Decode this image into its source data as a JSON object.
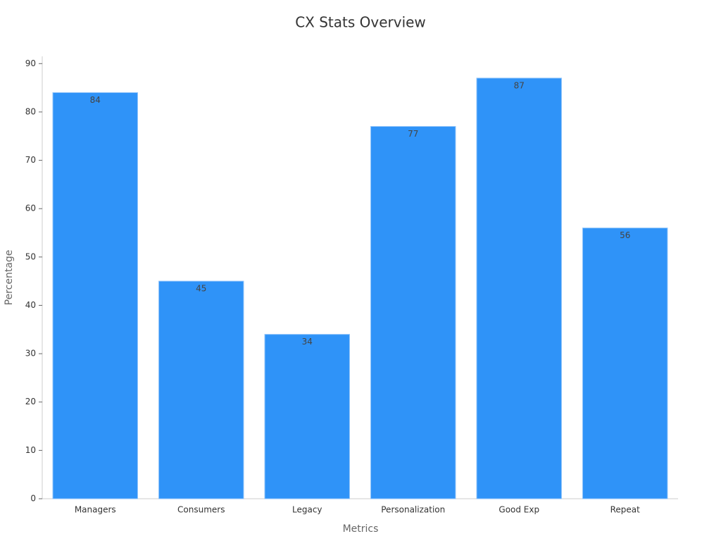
{
  "chart_data": {
    "type": "bar",
    "title": "CX Stats Overview",
    "x_label": "Metrics",
    "y_label": "Percentage",
    "categories": [
      "Managers",
      "Consumers",
      "Legacy",
      "Personalization",
      "Good Exp",
      "Repeat"
    ],
    "values": [
      84,
      45,
      34,
      77,
      87,
      56
    ],
    "color": "#2f93f8",
    "ylim": [
      0,
      91.5
    ],
    "yticks": [
      0,
      10,
      20,
      30,
      40,
      50,
      60,
      70,
      80,
      90
    ],
    "grid": false
  }
}
